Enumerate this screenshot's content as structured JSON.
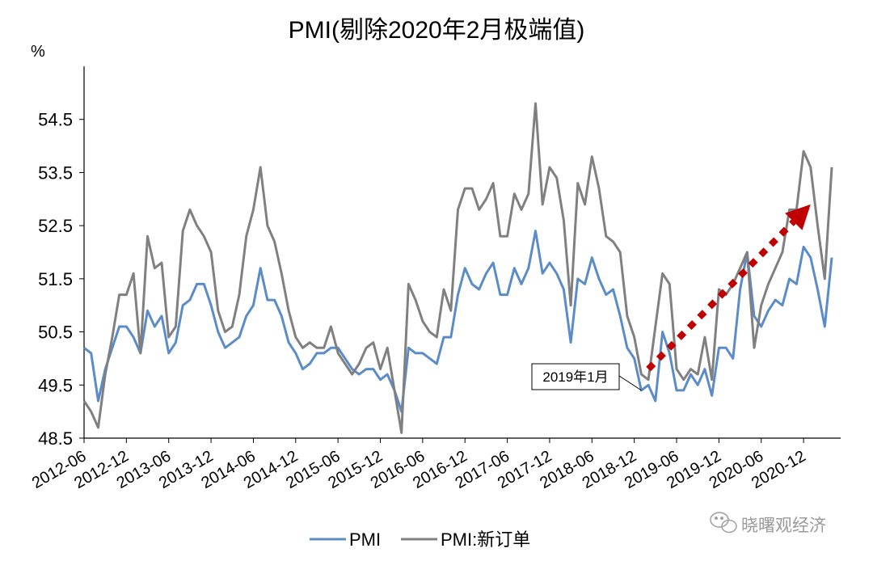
{
  "chart_data": {
    "type": "line",
    "title": "PMI(剔除2020年2月极端值)",
    "ylabel": "%",
    "ylim": [
      48.5,
      55.5
    ],
    "yticks": [
      "48.5",
      "49.5",
      "50.5",
      "51.5",
      "52.5",
      "53.5",
      "54.5"
    ],
    "xticks": [
      "2012-06",
      "2012-12",
      "2013-06",
      "2013-12",
      "2014-06",
      "2014-12",
      "2015-06",
      "2015-12",
      "2016-06",
      "2016-12",
      "2017-06",
      "2017-12",
      "2018-06",
      "2018-12",
      "2019-06",
      "2019-12",
      "2020-06",
      "2020-12"
    ],
    "x_start": "2012-06",
    "colors": {
      "pmi": "#5b8cc8",
      "new_orders": "#808080",
      "arrow": "#c00000"
    },
    "series": [
      {
        "name": "PMI",
        "values": [
          50.2,
          50.1,
          49.2,
          49.8,
          50.2,
          50.6,
          50.6,
          50.4,
          50.1,
          50.9,
          50.6,
          50.8,
          50.1,
          50.3,
          51.0,
          51.1,
          51.4,
          51.4,
          51.0,
          50.5,
          50.2,
          50.3,
          50.4,
          50.8,
          51.0,
          51.7,
          51.1,
          51.1,
          50.8,
          50.3,
          50.1,
          49.8,
          49.9,
          50.1,
          50.1,
          50.2,
          50.2,
          50.0,
          49.8,
          49.7,
          49.8,
          49.8,
          49.6,
          49.7,
          49.4,
          49.0,
          50.2,
          50.1,
          50.1,
          50.0,
          49.9,
          50.4,
          50.4,
          51.2,
          51.7,
          51.4,
          51.3,
          51.6,
          51.8,
          51.2,
          51.2,
          51.7,
          51.4,
          51.7,
          52.4,
          51.6,
          51.8,
          51.6,
          51.3,
          50.3,
          51.5,
          51.4,
          51.9,
          51.5,
          51.2,
          51.3,
          50.8,
          50.2,
          50.0,
          49.4,
          49.5,
          49.2,
          50.5,
          50.1,
          49.4,
          49.4,
          49.7,
          49.5,
          49.8,
          49.3,
          50.2,
          50.2,
          50.0,
          51.3,
          52.0,
          50.8,
          50.6,
          50.9,
          51.1,
          51.0,
          51.5,
          51.4,
          52.1,
          51.9,
          51.3,
          50.6,
          51.9
        ],
        "values_note": ""
      },
      {
        "name": "PMI:新订单",
        "values": [
          49.2,
          49.0,
          48.7,
          49.7,
          50.4,
          51.2,
          51.2,
          51.6,
          50.1,
          52.3,
          51.7,
          51.8,
          50.4,
          50.6,
          52.4,
          52.8,
          52.5,
          52.3,
          52.0,
          50.9,
          50.5,
          50.6,
          51.2,
          52.3,
          52.8,
          53.6,
          52.5,
          52.2,
          51.6,
          50.9,
          50.4,
          50.2,
          50.3,
          50.2,
          50.2,
          50.6,
          50.1,
          49.9,
          49.7,
          49.9,
          50.2,
          50.3,
          49.8,
          50.2,
          49.4,
          48.6,
          51.4,
          51.1,
          50.7,
          50.5,
          50.4,
          51.3,
          50.9,
          52.8,
          53.2,
          53.2,
          52.8,
          53.0,
          53.3,
          52.3,
          52.3,
          53.1,
          52.8,
          53.1,
          54.8,
          52.9,
          53.6,
          53.4,
          52.6,
          51.0,
          53.3,
          52.9,
          53.8,
          53.2,
          52.3,
          52.2,
          52.0,
          50.8,
          50.4,
          49.7,
          49.6,
          50.6,
          51.6,
          51.4,
          49.8,
          49.6,
          49.8,
          49.7,
          50.4,
          49.6,
          51.3,
          51.2,
          51.4,
          51.7,
          52.0,
          50.2,
          51.0,
          51.4,
          51.7,
          52.0,
          52.8,
          52.8,
          53.9,
          53.6,
          52.5,
          51.5,
          53.6
        ]
      }
    ],
    "annotations": [
      {
        "text": "2019年1月",
        "target_date": "2019-01"
      },
      {
        "type": "trend-arrow",
        "from": {
          "date": "2019-02",
          "value": 49.8
        },
        "to": {
          "date": "2021-01",
          "value": 52.9
        }
      }
    ],
    "legend": {
      "position": "bottom",
      "entries": [
        "PMI",
        "PMI:新订单"
      ]
    }
  },
  "watermark": "晓曙观经济"
}
